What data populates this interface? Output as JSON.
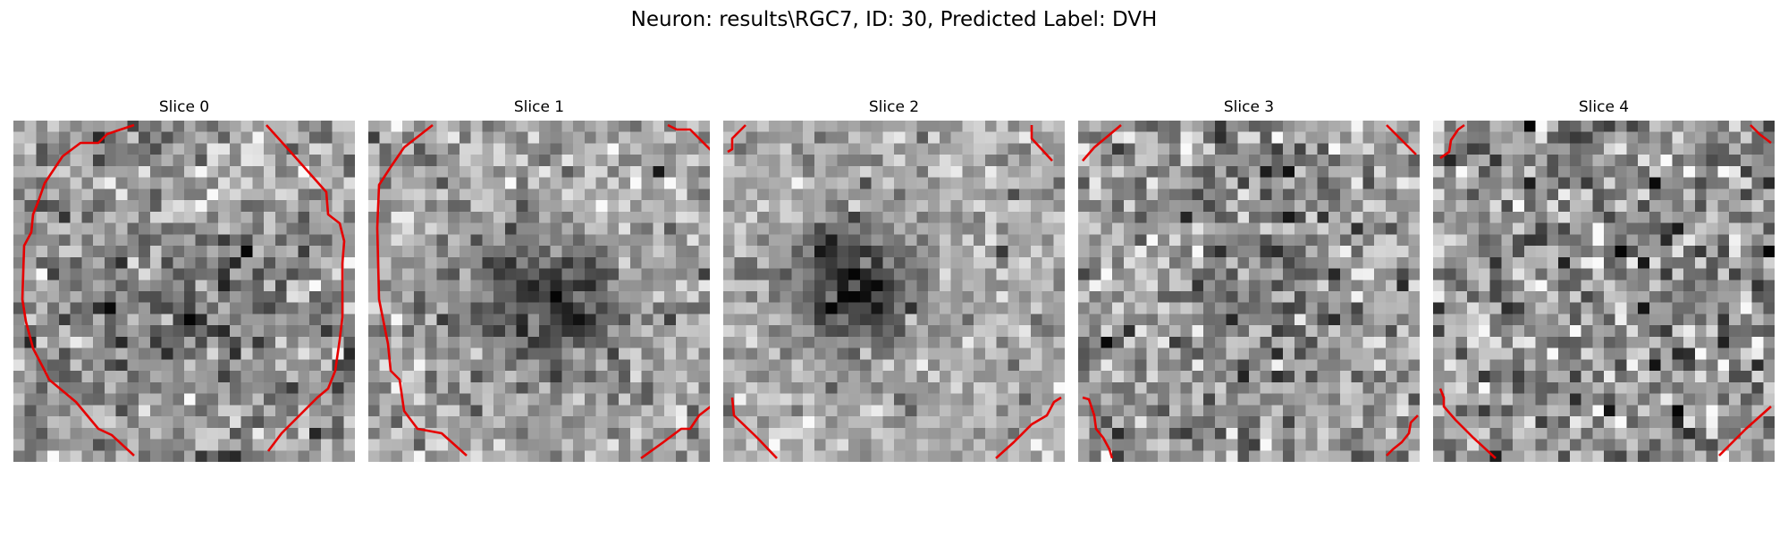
{
  "figure": {
    "suptitle": "Neuron: results\\RGC7, ID: 30, Predicted Label: DVH",
    "contour_color": "#e60000",
    "colormap": "gray",
    "slices": [
      {
        "title": "Slice 0"
      },
      {
        "title": "Slice 1"
      },
      {
        "title": "Slice 2"
      },
      {
        "title": "Slice 3"
      },
      {
        "title": "Slice 4"
      }
    ]
  }
}
